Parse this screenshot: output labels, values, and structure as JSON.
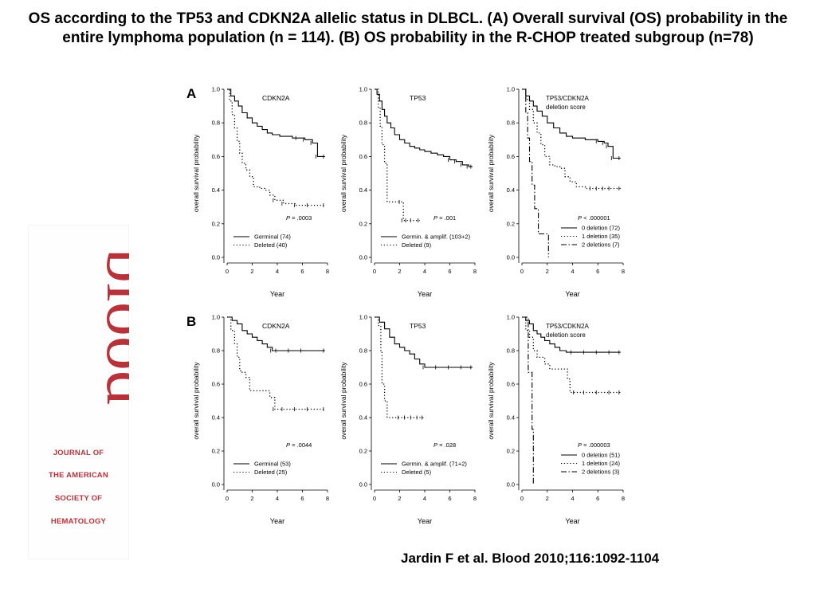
{
  "title": "OS according to the TP53 and CDKN2A allelic status in DLBCL. (A) Overall survival (OS) probability in the entire lymphoma population (n = 114). (B) OS probability in the R-CHOP treated subgroup (n=78)",
  "citation": "Jardin F et al. Blood 2010;116:1092-1104",
  "logo": {
    "wordmark": "blood",
    "journal_lines": [
      "JOURNAL OF",
      "THE AMERICAN",
      "SOCIETY OF",
      "HEMATOLOGY"
    ],
    "color": "#b8323a"
  },
  "panel_labels": [
    "A",
    "B"
  ],
  "chart_data": [
    {
      "type": "line",
      "row": "A",
      "title": "CDKN2A",
      "xlabel": "Year",
      "ylabel": "overall survival probability",
      "xlim": [
        0,
        8
      ],
      "ylim": [
        0,
        1
      ],
      "xticks": [
        "0",
        "2",
        "4",
        "6",
        "8"
      ],
      "yticks": [
        "0.0",
        "0.2",
        "0.4",
        "0.6",
        "0.8",
        "1.0"
      ],
      "pvalue": ".0003",
      "legend_position": "bottom-left",
      "series": [
        {
          "name": "Germinal (74)",
          "style": "solid",
          "x": [
            0,
            0.3,
            0.6,
            0.9,
            1.2,
            1.6,
            2.0,
            2.4,
            2.8,
            3.2,
            3.6,
            4.2,
            4.6,
            5.2,
            5.6,
            6.2,
            6.8,
            7.2,
            7.8
          ],
          "y": [
            1.0,
            0.96,
            0.93,
            0.9,
            0.86,
            0.83,
            0.8,
            0.78,
            0.76,
            0.74,
            0.73,
            0.72,
            0.72,
            0.71,
            0.71,
            0.7,
            0.68,
            0.6,
            0.6
          ]
        },
        {
          "name": "Deleted (40)",
          "style": "dotted",
          "x": [
            0,
            0.2,
            0.4,
            0.6,
            0.8,
            1.0,
            1.2,
            1.5,
            1.8,
            2.1,
            2.6,
            3.0,
            3.4,
            3.8,
            4.5,
            5.5,
            6.5,
            7.8
          ],
          "y": [
            1.0,
            0.93,
            0.85,
            0.77,
            0.69,
            0.62,
            0.56,
            0.52,
            0.48,
            0.42,
            0.41,
            0.4,
            0.37,
            0.34,
            0.32,
            0.31,
            0.31,
            0.31
          ]
        }
      ]
    },
    {
      "type": "line",
      "row": "A",
      "title": "TP53",
      "xlabel": "Year",
      "ylabel": "overall survival probability",
      "xlim": [
        0,
        8
      ],
      "ylim": [
        0,
        1
      ],
      "xticks": [
        "0",
        "2",
        "4",
        "6",
        "8"
      ],
      "yticks": [
        "0.0",
        "0.2",
        "0.4",
        "0.6",
        "0.8",
        "1.0"
      ],
      "pvalue": ".001",
      "legend_position": "bottom-left",
      "series": [
        {
          "name": "Germin. & amplif. (103+2)",
          "style": "solid",
          "x": [
            0,
            0.2,
            0.4,
            0.6,
            0.8,
            1.0,
            1.3,
            1.6,
            2.0,
            2.4,
            2.8,
            3.2,
            3.6,
            4.0,
            4.5,
            5.0,
            5.5,
            6.0,
            6.5,
            7.0,
            7.5,
            7.8
          ],
          "y": [
            1.0,
            0.97,
            0.93,
            0.88,
            0.84,
            0.8,
            0.77,
            0.73,
            0.7,
            0.68,
            0.66,
            0.65,
            0.64,
            0.63,
            0.62,
            0.61,
            0.6,
            0.58,
            0.57,
            0.55,
            0.54,
            0.54
          ]
        },
        {
          "name": "Deleted (9)",
          "style": "dotted",
          "x": [
            0,
            0.3,
            0.45,
            0.6,
            0.8,
            1.0,
            1.5,
            2.1,
            2.3,
            2.6,
            3.0,
            3.6
          ],
          "y": [
            1.0,
            0.89,
            0.78,
            0.67,
            0.56,
            0.33,
            0.33,
            0.33,
            0.22,
            0.22,
            0.22,
            0.22
          ]
        }
      ]
    },
    {
      "type": "line",
      "row": "A",
      "title": "TP53/CDKN2A deletion score",
      "xlabel": "Year",
      "ylabel": "overall survival probability",
      "xlim": [
        0,
        8
      ],
      "ylim": [
        0,
        1
      ],
      "xticks": [
        "0",
        "2",
        "4",
        "6",
        "8"
      ],
      "yticks": [
        "0.0",
        "0.2",
        "0.4",
        "0.6",
        "0.8",
        "1.0"
      ],
      "pvalue": "< .000001",
      "legend_position": "bottom-right",
      "series": [
        {
          "name": "0 deletion (72)",
          "style": "solid",
          "x": [
            0,
            0.3,
            0.6,
            0.9,
            1.2,
            1.6,
            2.0,
            2.5,
            3.0,
            3.5,
            4.0,
            4.5,
            5.0,
            5.5,
            6.0,
            6.5,
            6.8,
            7.2,
            7.8
          ],
          "y": [
            1.0,
            0.96,
            0.93,
            0.9,
            0.87,
            0.84,
            0.8,
            0.77,
            0.74,
            0.72,
            0.71,
            0.71,
            0.7,
            0.7,
            0.69,
            0.68,
            0.66,
            0.59,
            0.59
          ]
        },
        {
          "name": "1 deletion (35)",
          "style": "dotted",
          "x": [
            0,
            0.3,
            0.6,
            0.9,
            1.2,
            1.5,
            1.8,
            2.2,
            2.6,
            3.0,
            3.4,
            3.8,
            4.3,
            5.0,
            5.5,
            6.0,
            6.5,
            7.0,
            7.8
          ],
          "y": [
            1.0,
            0.94,
            0.88,
            0.8,
            0.74,
            0.67,
            0.6,
            0.55,
            0.54,
            0.53,
            0.48,
            0.45,
            0.42,
            0.41,
            0.41,
            0.41,
            0.41,
            0.41,
            0.41
          ]
        },
        {
          "name": "2 deletions (7)",
          "style": "dashdot",
          "x": [
            0,
            0.2,
            0.3,
            0.45,
            0.6,
            0.8,
            1.0,
            1.3,
            1.6,
            2.1,
            2.1
          ],
          "y": [
            1.0,
            1.0,
            0.86,
            0.71,
            0.57,
            0.43,
            0.29,
            0.14,
            0.14,
            0.14,
            0.0
          ]
        }
      ]
    },
    {
      "type": "line",
      "row": "B",
      "title": "CDKN2A",
      "xlabel": "Year",
      "ylabel": "overall survival probability",
      "xlim": [
        0,
        8
      ],
      "ylim": [
        0,
        1
      ],
      "xticks": [
        "0",
        "2",
        "4",
        "6",
        "8"
      ],
      "yticks": [
        "0.0",
        "0.2",
        "0.4",
        "0.6",
        "0.8",
        "1.0"
      ],
      "pvalue": ".0044",
      "legend_position": "bottom-left",
      "series": [
        {
          "name": "Germinal (53)",
          "style": "solid",
          "x": [
            0,
            0.4,
            0.8,
            1.2,
            1.6,
            2.0,
            2.4,
            2.8,
            3.2,
            3.6,
            4.0,
            5.0,
            6.0,
            7.8
          ],
          "y": [
            1.0,
            0.98,
            0.96,
            0.92,
            0.9,
            0.88,
            0.86,
            0.84,
            0.82,
            0.8,
            0.8,
            0.8,
            0.8,
            0.8
          ]
        },
        {
          "name": "Deleted (25)",
          "style": "dotted",
          "x": [
            0,
            0.3,
            0.6,
            0.8,
            1.0,
            1.2,
            1.5,
            1.8,
            2.2,
            2.6,
            3.0,
            3.4,
            3.8,
            4.5,
            5.5,
            6.5,
            7.8
          ],
          "y": [
            1.0,
            0.92,
            0.84,
            0.76,
            0.68,
            0.67,
            0.64,
            0.56,
            0.56,
            0.56,
            0.56,
            0.52,
            0.45,
            0.45,
            0.45,
            0.45,
            0.45
          ]
        }
      ]
    },
    {
      "type": "line",
      "row": "B",
      "title": "TP53",
      "xlabel": "Year",
      "ylabel": "overall survival probability",
      "xlim": [
        0,
        8
      ],
      "ylim": [
        0,
        1
      ],
      "xticks": [
        "0",
        "2",
        "4",
        "6",
        "8"
      ],
      "yticks": [
        "0.0",
        "0.2",
        "0.4",
        "0.6",
        "0.8",
        "1.0"
      ],
      "pvalue": ".028",
      "legend_position": "bottom-left",
      "series": [
        {
          "name": "Germin. & amplif. (71+2)",
          "style": "solid",
          "x": [
            0,
            0.4,
            0.8,
            1.2,
            1.6,
            2.0,
            2.4,
            2.8,
            3.2,
            3.6,
            4.0,
            5.0,
            6.0,
            7.0,
            7.8
          ],
          "y": [
            1.0,
            0.97,
            0.93,
            0.88,
            0.84,
            0.82,
            0.8,
            0.78,
            0.75,
            0.72,
            0.7,
            0.7,
            0.7,
            0.7,
            0.7
          ]
        },
        {
          "name": "Deleted (5)",
          "style": "dotted",
          "x": [
            0,
            0.3,
            0.5,
            0.6,
            0.8,
            1.0,
            1.5,
            2.0,
            2.5,
            3.0,
            3.5,
            3.9
          ],
          "y": [
            1.0,
            0.95,
            0.8,
            0.6,
            0.5,
            0.4,
            0.4,
            0.4,
            0.4,
            0.4,
            0.4,
            0.4
          ]
        }
      ]
    },
    {
      "type": "line",
      "row": "B",
      "title": "TP53/CDKN2A deletion score",
      "xlabel": "Year",
      "ylabel": "overall survival probability",
      "xlim": [
        0,
        8
      ],
      "ylim": [
        0,
        1
      ],
      "xticks": [
        "0",
        "2",
        "4",
        "6",
        "8"
      ],
      "yticks": [
        "0.0",
        "0.2",
        "0.4",
        "0.6",
        "0.8",
        "1.0"
      ],
      "pvalue": ".000003",
      "legend_position": "bottom-right",
      "series": [
        {
          "name": "0 deletion (51)",
          "style": "solid",
          "x": [
            0,
            0.3,
            0.6,
            0.9,
            1.2,
            1.5,
            1.8,
            2.2,
            2.6,
            3.0,
            3.5,
            4.0,
            5.0,
            6.0,
            7.0,
            7.8
          ],
          "y": [
            1.0,
            0.98,
            0.96,
            0.92,
            0.9,
            0.88,
            0.86,
            0.84,
            0.82,
            0.8,
            0.79,
            0.79,
            0.79,
            0.79,
            0.79,
            0.79
          ]
        },
        {
          "name": "1 deletion (24)",
          "style": "dotted",
          "x": [
            0,
            0.3,
            0.6,
            0.9,
            1.2,
            1.5,
            1.8,
            2.2,
            2.6,
            3.0,
            3.4,
            3.6,
            3.8,
            4.2,
            5.0,
            6.0,
            7.0,
            7.8
          ],
          "y": [
            1.0,
            0.92,
            0.88,
            0.8,
            0.76,
            0.76,
            0.72,
            0.69,
            0.69,
            0.69,
            0.69,
            0.63,
            0.55,
            0.55,
            0.55,
            0.55,
            0.55,
            0.55
          ]
        },
        {
          "name": "2 deletions (3)",
          "style": "dashdot",
          "x": [
            0,
            0.3,
            0.5,
            0.65,
            0.8,
            0.9,
            0.9
          ],
          "y": [
            1.0,
            1.0,
            0.67,
            0.67,
            0.33,
            0.33,
            0.0
          ]
        }
      ]
    }
  ]
}
